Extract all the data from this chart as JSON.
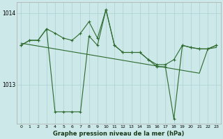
{
  "title": "Graphe pression niveau de la mer (hPa)",
  "bg_color": "#cce8e8",
  "grid_color": "#aad0d0",
  "line_color": "#2d6a2d",
  "xlim": [
    -0.5,
    23.5
  ],
  "ylim": [
    1012.45,
    1014.15
  ],
  "yticks": [
    1013,
    1014
  ],
  "xticks": [
    0,
    1,
    2,
    3,
    4,
    5,
    6,
    7,
    8,
    9,
    10,
    11,
    12,
    13,
    14,
    15,
    16,
    17,
    18,
    19,
    20,
    21,
    22,
    23
  ],
  "series_main": [
    1013.55,
    1013.62,
    1013.62,
    1013.78,
    1012.62,
    1012.62,
    1012.62,
    1012.62,
    1013.68,
    1013.55,
    1014.05,
    1013.55,
    1013.45,
    1013.45,
    1013.45,
    1013.35,
    1013.25,
    1013.25,
    1012.52,
    1013.55,
    1013.52,
    1013.5,
    1013.5,
    1013.55
  ],
  "series_upper": [
    1013.55,
    1013.62,
    1013.62,
    1013.78,
    1013.72,
    1013.65,
    1013.62,
    1013.72,
    1013.88,
    1013.65,
    1014.05,
    1013.55,
    1013.45,
    1013.45,
    1013.45,
    1013.35,
    1013.28,
    1013.28,
    1013.35,
    1013.55,
    1013.52,
    1013.5,
    1013.5,
    1013.55
  ],
  "series_trend": [
    1013.58,
    1013.56,
    1013.54,
    1013.52,
    1013.5,
    1013.48,
    1013.46,
    1013.44,
    1013.42,
    1013.4,
    1013.38,
    1013.36,
    1013.34,
    1013.32,
    1013.3,
    1013.28,
    1013.26,
    1013.24,
    1013.22,
    1013.2,
    1013.18,
    1013.16,
    1013.5,
    1013.52
  ],
  "figsize": [
    3.2,
    2.0
  ],
  "dpi": 100
}
